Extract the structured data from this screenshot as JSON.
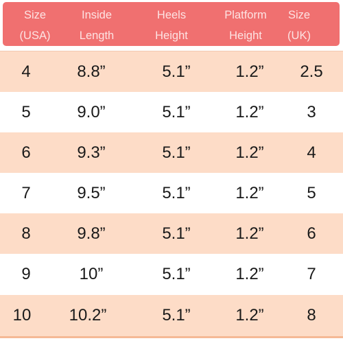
{
  "table": {
    "headers": [
      [
        "Size",
        "(USA)"
      ],
      [
        "Inside",
        "Length"
      ],
      [
        "Heels",
        "Height"
      ],
      [
        "Platform",
        "Height"
      ],
      [
        "Size",
        "(UK)"
      ]
    ],
    "rows": [
      [
        "4",
        "8.8”",
        "5.1”",
        "1.2”",
        "2.5"
      ],
      [
        "5",
        "9.0”",
        "5.1”",
        "1.2”",
        "3"
      ],
      [
        "6",
        "9.3”",
        "5.1”",
        "1.2”",
        "4"
      ],
      [
        "7",
        "9.5”",
        "5.1”",
        "1.2”",
        "5"
      ],
      [
        "8",
        "9.8”",
        "5.1”",
        "1.2”",
        "6"
      ],
      [
        "9",
        "10”",
        "5.1”",
        "1.2”",
        "7"
      ],
      [
        "10",
        "10.2”",
        "5.1”",
        "1.2”",
        "8"
      ]
    ]
  },
  "colors": {
    "header_bg": "#f07070",
    "header_text": "#fde3e3",
    "row_alt_bg": "#fddcc7",
    "row_bg": "#ffffff",
    "text": "#1a1a1a"
  }
}
